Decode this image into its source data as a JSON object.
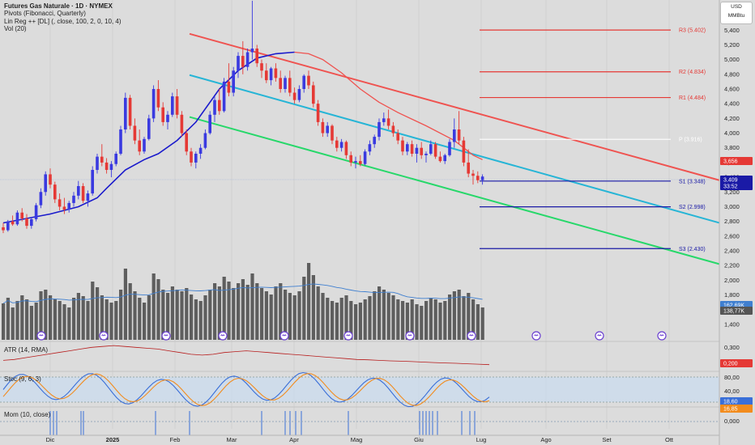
{
  "header": {
    "title": "Futures Gas Naturale · 1D · NYMEX",
    "pivots": "Pivots (Fibonacci, Quarterly)",
    "linreg": "Lin Reg ++ [DL] (, close, 100, 2, 0, 10, 4)",
    "vol": "Vol (20)"
  },
  "unit_box": {
    "currency": "USD",
    "unit": "MMBtu"
  },
  "panes": {
    "atr": {
      "label": "ATR (14, RMA)",
      "value_tag": "0,200",
      "ticks": [
        "0,300",
        "0,200"
      ]
    },
    "stoch": {
      "label": "Stoc (9, 6, 3)",
      "tags": [
        "18,60",
        "16,85"
      ],
      "ticks": [
        "80,00",
        "40,00",
        "20,00"
      ]
    },
    "mom": {
      "label": "Mom (10, close)",
      "ticks": [
        "0,000"
      ]
    }
  },
  "chart_data": {
    "type": "candlestick",
    "x_ticks": [
      "Dic",
      "2025",
      "Feb",
      "Mar",
      "Apr",
      "Mag",
      "Giu",
      "Lug",
      "Ago",
      "Set",
      "Ott"
    ],
    "y_ticks": [
      "5,400",
      "5,200",
      "5,000",
      "4,800",
      "4,600",
      "4,400",
      "4,200",
      "4,000",
      "3,800",
      "3,600",
      "3,400",
      "3,200",
      "3,000",
      "2,800",
      "2,600",
      "2,400",
      "2,200",
      "2,000",
      "1,800",
      "1,600",
      "1,400"
    ],
    "ylim": [
      1.3,
      5.7
    ],
    "price_tags": {
      "last": "3,409",
      "countdown": "33:52",
      "upper": "3,656",
      "vol1": "162,69K",
      "vol2": "138,77K"
    },
    "pivots": [
      {
        "label": "R3 (5.402)",
        "value": 5.402,
        "color": "#e53935"
      },
      {
        "label": "R2 (4.834)",
        "value": 4.834,
        "color": "#e53935"
      },
      {
        "label": "R1 (4.484)",
        "value": 4.484,
        "color": "#e53935"
      },
      {
        "label": "P (3.916)",
        "value": 3.916,
        "color": "#ffffff"
      },
      {
        "label": "S1 (3.348)",
        "value": 3.348,
        "color": "#1a1aa6"
      },
      {
        "label": "S2 (2.998)",
        "value": 2.998,
        "color": "#1a1aa6"
      },
      {
        "label": "S3 (2.430)",
        "value": 2.43,
        "color": "#1a1aa6"
      }
    ],
    "regression": {
      "upper": {
        "start": 5.35,
        "end": 3.36,
        "color": "#ef5350"
      },
      "middle": {
        "start": 4.79,
        "end": 2.78,
        "color": "#26b5d6"
      },
      "lower": {
        "start": 4.22,
        "end": 2.22,
        "color": "#27d86a"
      }
    },
    "candles": [
      [
        2.72,
        2.78,
        2.64,
        2.68
      ],
      [
        2.68,
        2.82,
        2.66,
        2.8
      ],
      [
        2.8,
        2.88,
        2.74,
        2.76
      ],
      [
        2.76,
        2.95,
        2.74,
        2.92
      ],
      [
        2.92,
        2.98,
        2.8,
        2.84
      ],
      [
        2.84,
        2.9,
        2.7,
        2.74
      ],
      [
        2.74,
        2.86,
        2.7,
        2.83
      ],
      [
        2.83,
        3.05,
        2.8,
        3.02
      ],
      [
        3.02,
        3.25,
        2.98,
        3.2
      ],
      [
        3.2,
        3.48,
        3.15,
        3.44
      ],
      [
        3.44,
        3.52,
        3.25,
        3.3
      ],
      [
        3.3,
        3.34,
        3.05,
        3.1
      ],
      [
        3.1,
        3.18,
        2.95,
        3.0
      ],
      [
        3.0,
        3.12,
        2.9,
        2.96
      ],
      [
        2.96,
        3.08,
        2.92,
        3.05
      ],
      [
        3.05,
        3.2,
        3.0,
        3.15
      ],
      [
        3.15,
        3.35,
        3.1,
        3.28
      ],
      [
        3.28,
        3.32,
        3.05,
        3.08
      ],
      [
        3.08,
        3.22,
        3.0,
        3.18
      ],
      [
        3.18,
        3.55,
        3.15,
        3.5
      ],
      [
        3.5,
        3.72,
        3.45,
        3.68
      ],
      [
        3.68,
        3.85,
        3.55,
        3.6
      ],
      [
        3.6,
        3.66,
        3.45,
        3.5
      ],
      [
        3.5,
        3.62,
        3.4,
        3.58
      ],
      [
        3.58,
        3.75,
        3.55,
        3.72
      ],
      [
        3.72,
        4.1,
        3.7,
        4.05
      ],
      [
        4.05,
        4.55,
        4.0,
        4.48
      ],
      [
        4.48,
        4.52,
        4.05,
        4.1
      ],
      [
        4.1,
        4.2,
        3.85,
        3.9
      ],
      [
        3.9,
        4.05,
        3.7,
        3.75
      ],
      [
        3.75,
        3.95,
        3.72,
        3.92
      ],
      [
        3.92,
        4.25,
        3.9,
        4.2
      ],
      [
        4.2,
        4.65,
        4.15,
        4.6
      ],
      [
        4.6,
        4.72,
        4.3,
        4.35
      ],
      [
        4.35,
        4.42,
        4.1,
        4.15
      ],
      [
        4.15,
        4.3,
        4.05,
        4.25
      ],
      [
        4.25,
        4.55,
        4.22,
        4.5
      ],
      [
        4.5,
        4.6,
        4.2,
        4.25
      ],
      [
        4.25,
        4.3,
        3.95,
        4.0
      ],
      [
        4.0,
        4.05,
        3.7,
        3.75
      ],
      [
        3.75,
        3.8,
        3.55,
        3.6
      ],
      [
        3.6,
        3.75,
        3.52,
        3.72
      ],
      [
        3.72,
        3.85,
        3.65,
        3.8
      ],
      [
        3.8,
        4.05,
        3.78,
        4.0
      ],
      [
        4.0,
        4.3,
        3.98,
        4.25
      ],
      [
        4.25,
        4.5,
        4.15,
        4.45
      ],
      [
        4.45,
        4.6,
        4.25,
        4.3
      ],
      [
        4.3,
        4.75,
        4.28,
        4.7
      ],
      [
        4.7,
        4.95,
        4.5,
        4.55
      ],
      [
        4.55,
        4.9,
        4.5,
        4.85
      ],
      [
        4.85,
        5.1,
        4.75,
        5.05
      ],
      [
        5.05,
        5.25,
        4.8,
        4.9
      ],
      [
        4.9,
        5.15,
        4.85,
        5.1
      ],
      [
        5.1,
        5.8,
        5.0,
        5.15
      ],
      [
        5.15,
        5.2,
        4.9,
        4.95
      ],
      [
        4.95,
        5.0,
        4.75,
        4.85
      ],
      [
        4.85,
        4.95,
        4.68,
        4.72
      ],
      [
        4.72,
        4.9,
        4.65,
        4.88
      ],
      [
        4.88,
        4.95,
        4.7,
        4.75
      ],
      [
        4.75,
        4.85,
        4.55,
        4.6
      ],
      [
        4.6,
        4.78,
        4.55,
        4.75
      ],
      [
        4.75,
        4.85,
        4.5,
        4.55
      ],
      [
        4.55,
        4.62,
        4.4,
        4.45
      ],
      [
        4.45,
        4.65,
        4.42,
        4.6
      ],
      [
        4.6,
        4.8,
        4.55,
        4.78
      ],
      [
        4.78,
        4.85,
        4.6,
        4.65
      ],
      [
        4.65,
        4.7,
        4.35,
        4.4
      ],
      [
        4.4,
        4.45,
        4.1,
        4.15
      ],
      [
        4.15,
        4.2,
        3.95,
        4.0
      ],
      [
        4.0,
        4.15,
        3.95,
        4.1
      ],
      [
        4.1,
        4.12,
        3.85,
        3.9
      ],
      [
        3.9,
        3.95,
        3.75,
        3.8
      ],
      [
        3.8,
        3.92,
        3.75,
        3.88
      ],
      [
        3.88,
        3.9,
        3.65,
        3.7
      ],
      [
        3.7,
        3.75,
        3.55,
        3.6
      ],
      [
        3.6,
        3.68,
        3.52,
        3.62
      ],
      [
        3.62,
        3.7,
        3.55,
        3.58
      ],
      [
        3.58,
        3.78,
        3.56,
        3.75
      ],
      [
        3.75,
        3.9,
        3.7,
        3.85
      ],
      [
        3.85,
        3.98,
        3.8,
        3.95
      ],
      [
        3.95,
        4.2,
        3.9,
        4.15
      ],
      [
        4.15,
        4.28,
        4.1,
        4.2
      ],
      [
        4.2,
        4.32,
        4.05,
        4.1
      ],
      [
        4.1,
        4.15,
        3.95,
        4.0
      ],
      [
        4.0,
        4.05,
        3.85,
        3.9
      ],
      [
        3.9,
        3.95,
        3.7,
        3.75
      ],
      [
        3.75,
        3.88,
        3.7,
        3.85
      ],
      [
        3.85,
        3.9,
        3.68,
        3.72
      ],
      [
        3.72,
        3.85,
        3.6,
        3.8
      ],
      [
        3.8,
        3.88,
        3.65,
        3.7
      ],
      [
        3.7,
        3.75,
        3.6,
        3.72
      ],
      [
        3.72,
        3.9,
        3.7,
        3.85
      ],
      [
        3.85,
        3.88,
        3.65,
        3.68
      ],
      [
        3.68,
        3.75,
        3.6,
        3.62
      ],
      [
        3.62,
        3.72,
        3.58,
        3.7
      ],
      [
        3.7,
        3.92,
        3.68,
        3.88
      ],
      [
        3.88,
        4.2,
        3.8,
        4.05
      ],
      [
        4.05,
        4.3,
        3.85,
        3.9
      ],
      [
        3.9,
        3.95,
        3.55,
        3.6
      ],
      [
        3.6,
        3.78,
        3.4,
        3.45
      ],
      [
        3.45,
        3.5,
        3.3,
        3.42
      ],
      [
        3.42,
        3.48,
        3.32,
        3.36
      ],
      [
        3.36,
        3.44,
        3.3,
        3.41
      ]
    ],
    "ma": [
      [
        0,
        2.78
      ],
      [
        10,
        2.9
      ],
      [
        16,
        3.0
      ],
      [
        20,
        3.12
      ],
      [
        22,
        3.25
      ],
      [
        26,
        3.5
      ],
      [
        30,
        3.64
      ],
      [
        33,
        3.72
      ],
      [
        37,
        3.9
      ],
      [
        41,
        4.15
      ],
      [
        46,
        4.6
      ],
      [
        50,
        4.85
      ],
      [
        54,
        5.02
      ],
      [
        58,
        5.08
      ],
      [
        62,
        5.1
      ],
      [
        65,
        5.08
      ],
      [
        68,
        5.0
      ],
      [
        72,
        4.82
      ],
      [
        76,
        4.6
      ],
      [
        80,
        4.42
      ],
      [
        84,
        4.28
      ],
      [
        90,
        4.1
      ],
      [
        96,
        3.9
      ],
      [
        100,
        3.7
      ],
      [
        102,
        3.64
      ]
    ],
    "volume": [
      0.45,
      0.52,
      0.4,
      0.48,
      0.55,
      0.5,
      0.42,
      0.46,
      0.6,
      0.62,
      0.55,
      0.5,
      0.48,
      0.44,
      0.4,
      0.52,
      0.58,
      0.54,
      0.48,
      0.72,
      0.65,
      0.55,
      0.5,
      0.46,
      0.48,
      0.62,
      0.88,
      0.7,
      0.6,
      0.52,
      0.46,
      0.55,
      0.82,
      0.75,
      0.62,
      0.58,
      0.66,
      0.62,
      0.6,
      0.64,
      0.56,
      0.5,
      0.48,
      0.55,
      0.62,
      0.7,
      0.66,
      0.78,
      0.72,
      0.64,
      0.7,
      0.75,
      0.68,
      0.82,
      0.7,
      0.64,
      0.6,
      0.56,
      0.66,
      0.7,
      0.62,
      0.58,
      0.55,
      0.6,
      0.78,
      0.95,
      0.8,
      0.66,
      0.58,
      0.52,
      0.48,
      0.46,
      0.52,
      0.55,
      0.48,
      0.44,
      0.46,
      0.5,
      0.54,
      0.6,
      0.66,
      0.62,
      0.58,
      0.55,
      0.5,
      0.48,
      0.46,
      0.5,
      0.44,
      0.42,
      0.48,
      0.52,
      0.5,
      0.46,
      0.48,
      0.56,
      0.6,
      0.62,
      0.54,
      0.58,
      0.5,
      0.44,
      0.4
    ],
    "atr_series": [
      0.225,
      0.23,
      0.24,
      0.25,
      0.26,
      0.27,
      0.28,
      0.29,
      0.3,
      0.305,
      0.31,
      0.305,
      0.3,
      0.295,
      0.29,
      0.28,
      0.27,
      0.26,
      0.255,
      0.26,
      0.27,
      0.275,
      0.28,
      0.275,
      0.27,
      0.265,
      0.26,
      0.255,
      0.25,
      0.245,
      0.24,
      0.235,
      0.23,
      0.228,
      0.225,
      0.222,
      0.22,
      0.218,
      0.215,
      0.212,
      0.21,
      0.208,
      0.205,
      0.203,
      0.2
    ]
  }
}
